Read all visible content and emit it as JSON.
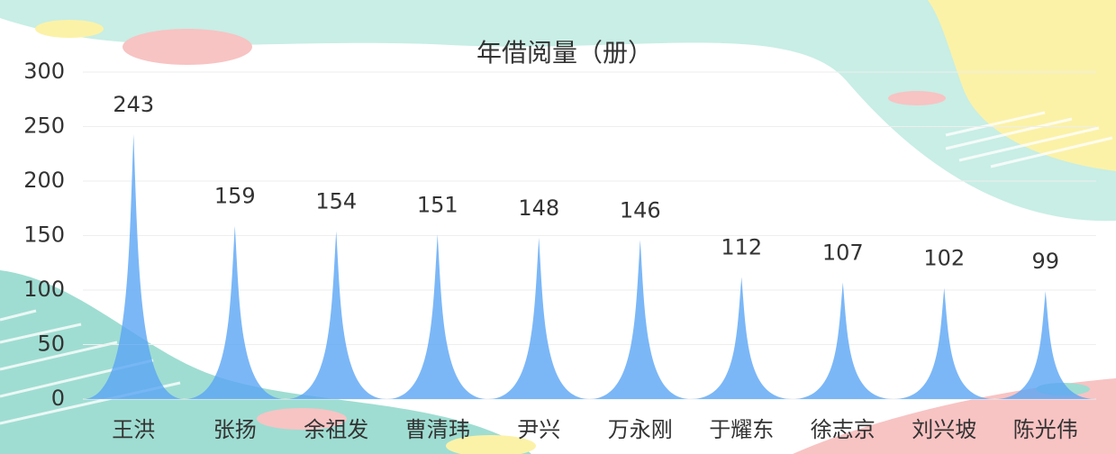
{
  "chart_data": {
    "type": "bar",
    "title": "年借阅量（册）",
    "categories": [
      "王洪",
      "张扬",
      "余祖发",
      "曹清玮",
      "尹兴",
      "万永刚",
      "于耀东",
      "徐志京",
      "刘兴坡",
      "陈光伟"
    ],
    "values": [
      243,
      159,
      154,
      151,
      148,
      146,
      112,
      107,
      102,
      99
    ],
    "color": "#5aa5f5",
    "ylim": [
      0,
      300
    ],
    "yticks": [
      0,
      50,
      100,
      150,
      200,
      250,
      300
    ],
    "grid": true
  }
}
